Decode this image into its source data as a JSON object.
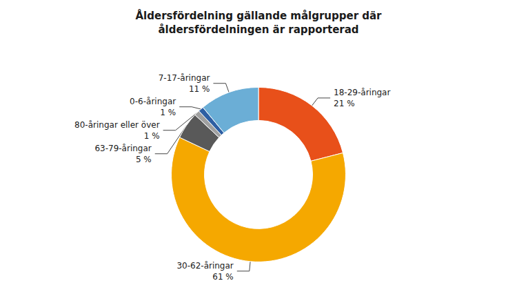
{
  "chart_data": {
    "type": "donut",
    "title": "Åldersfördelning gällande målgrupper där\nåldersfördelningen är rapporterad",
    "categories": [
      "18-29-åringar",
      "30-62-åringar",
      "63-79-åringar",
      "80-åringar eller över",
      "0-6-åringar",
      "7-17-åringar"
    ],
    "values": [
      21,
      61,
      5,
      1,
      1,
      11
    ],
    "value_labels": [
      "21 %",
      "61 %",
      "5 %",
      "1 %",
      "1 %",
      "11 %"
    ],
    "colors": [
      "#E8501A",
      "#F5A800",
      "#595959",
      "#A0A0A0",
      "#2E5FA3",
      "#6BAED6"
    ],
    "data_labels": true
  }
}
